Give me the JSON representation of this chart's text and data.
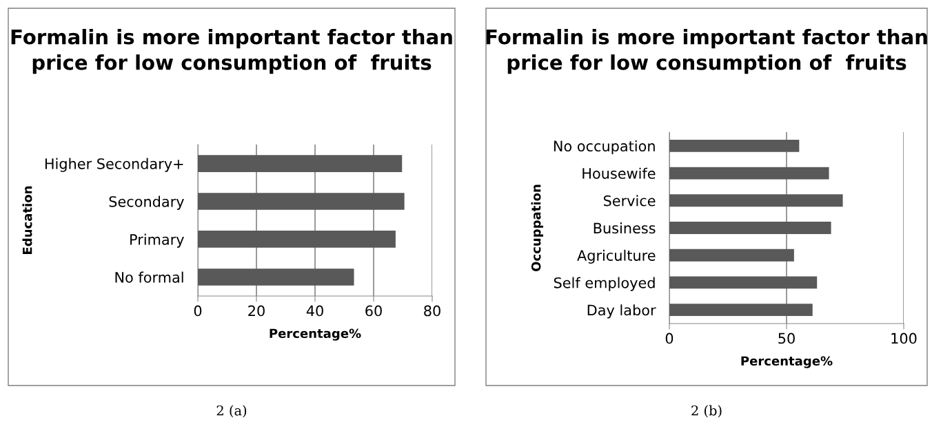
{
  "chart_data": [
    {
      "type": "bar",
      "orientation": "horizontal",
      "title": "Formalin is more important factor than price for low consumption of  fruits",
      "xlabel": "Percentage%",
      "ylabel": "Education",
      "categories": [
        "Higher Secondary+",
        "Secondary",
        "Primary",
        "No formal"
      ],
      "values": [
        69.7,
        70.5,
        67.5,
        53.3
      ],
      "color": "#595959",
      "xlim": [
        0,
        80
      ],
      "xticks": [
        0,
        20,
        40,
        60,
        80
      ],
      "grid": "x",
      "annotations": [
        "2 (a)"
      ]
    },
    {
      "type": "bar",
      "orientation": "horizontal",
      "title": "Formalin is more important factor than price for low consumption of  fruits",
      "xlabel": "Percentage%",
      "ylabel": "Occuppation",
      "categories": [
        "No occupation",
        "Housewife",
        "Service",
        "Business",
        "Agriculture",
        "Self employed",
        "Day labor"
      ],
      "values": [
        55.4,
        68.1,
        74.0,
        69.0,
        53.2,
        63.0,
        61.1
      ],
      "color": "#595959",
      "xlim": [
        0,
        100
      ],
      "xticks": [
        0,
        50,
        100
      ],
      "grid": "x",
      "annotations": [
        "2 (b)"
      ]
    }
  ]
}
